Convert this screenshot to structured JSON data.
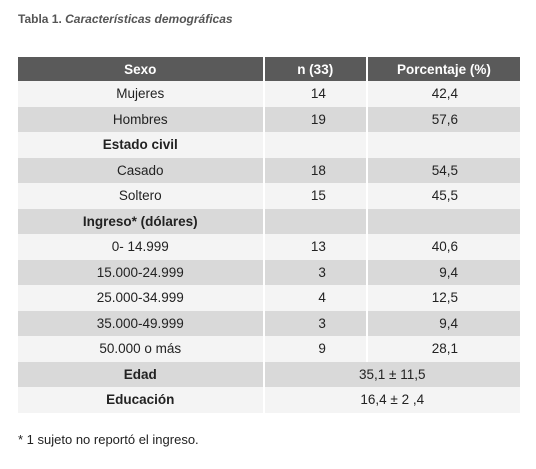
{
  "title": {
    "label": "Tabla 1.",
    "text": "Características demográficas"
  },
  "table": {
    "header": [
      "Sexo",
      "n (33)",
      "Porcentaje (%)"
    ],
    "rows": [
      [
        "Mujeres",
        "14",
        "42,4"
      ],
      [
        "Hombres",
        "19",
        "57,6"
      ],
      [
        "Estado civil"
      ],
      [
        "Casado",
        "18",
        "54,5"
      ],
      [
        "Soltero",
        "15",
        "45,5"
      ],
      [
        "Ingreso* (dólares)"
      ],
      [
        "0- 14.999",
        "13",
        "40,6"
      ],
      [
        "15.000-24.999",
        "3",
        "9,4"
      ],
      [
        "25.000-34.999",
        "4",
        "12,5"
      ],
      [
        "35.000-49.999",
        "3",
        "9,4"
      ],
      [
        "50.000 o más",
        "9",
        "28,1"
      ],
      [
        "Edad",
        "35,1 ± 11,5"
      ],
      [
        "Educación",
        "16,4 ± 2 ,4"
      ]
    ]
  },
  "footnote": "* 1 sujeto no reportó el ingreso."
}
